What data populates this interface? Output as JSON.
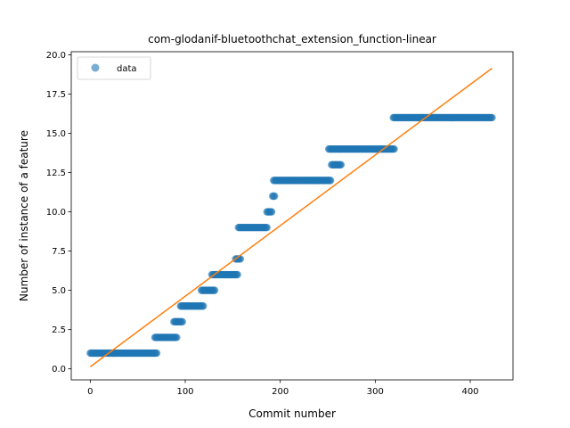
{
  "chart_data": {
    "type": "scatter",
    "title": "com-glodanif-bluetoothchat_extension_function-linear",
    "xlabel": "Commit number",
    "ylabel": "Number of instance of a feature",
    "xlim": [
      -20,
      445
    ],
    "ylim": [
      -0.7,
      20.2
    ],
    "xticks": [
      0,
      100,
      200,
      300,
      400
    ],
    "xtick_labels": [
      "0",
      "100",
      "200",
      "300",
      "400"
    ],
    "yticks": [
      0,
      2.5,
      5,
      7.5,
      10,
      12.5,
      15,
      17.5,
      20
    ],
    "ytick_labels": [
      "0.0",
      "2.5",
      "5.0",
      "7.5",
      "10.0",
      "12.5",
      "15.0",
      "17.5",
      "20.0"
    ],
    "grid": false,
    "legend": {
      "position": "top-left",
      "entries": [
        "data"
      ]
    },
    "colors": {
      "points": "#1f77b4",
      "fit": "#ff7f0e"
    },
    "series": [
      {
        "name": "data",
        "style": "points",
        "segments": [
          {
            "x_start": 0,
            "x_end": 70,
            "y": 1
          },
          {
            "x_start": 68,
            "x_end": 91,
            "y": 2
          },
          {
            "x_start": 88,
            "x_end": 97,
            "y": 3
          },
          {
            "x_start": 95,
            "x_end": 119,
            "y": 4
          },
          {
            "x_start": 117,
            "x_end": 131,
            "y": 5
          },
          {
            "x_start": 128,
            "x_end": 155,
            "y": 6
          },
          {
            "x_start": 153,
            "x_end": 158,
            "y": 7
          },
          {
            "x_start": 156,
            "x_end": 186,
            "y": 9
          },
          {
            "x_start": 186,
            "x_end": 191,
            "y": 10
          },
          {
            "x_start": 192,
            "x_end": 194,
            "y": 11
          },
          {
            "x_start": 193,
            "x_end": 253,
            "y": 12
          },
          {
            "x_start": 254,
            "x_end": 264,
            "y": 13
          },
          {
            "x_start": 251,
            "x_end": 320,
            "y": 14
          },
          {
            "x_start": 319,
            "x_end": 423,
            "y": 16
          }
        ]
      },
      {
        "name": "linear-fit",
        "style": "line",
        "x": [
          0,
          423
        ],
        "y": [
          0.13,
          19.15
        ]
      }
    ]
  }
}
